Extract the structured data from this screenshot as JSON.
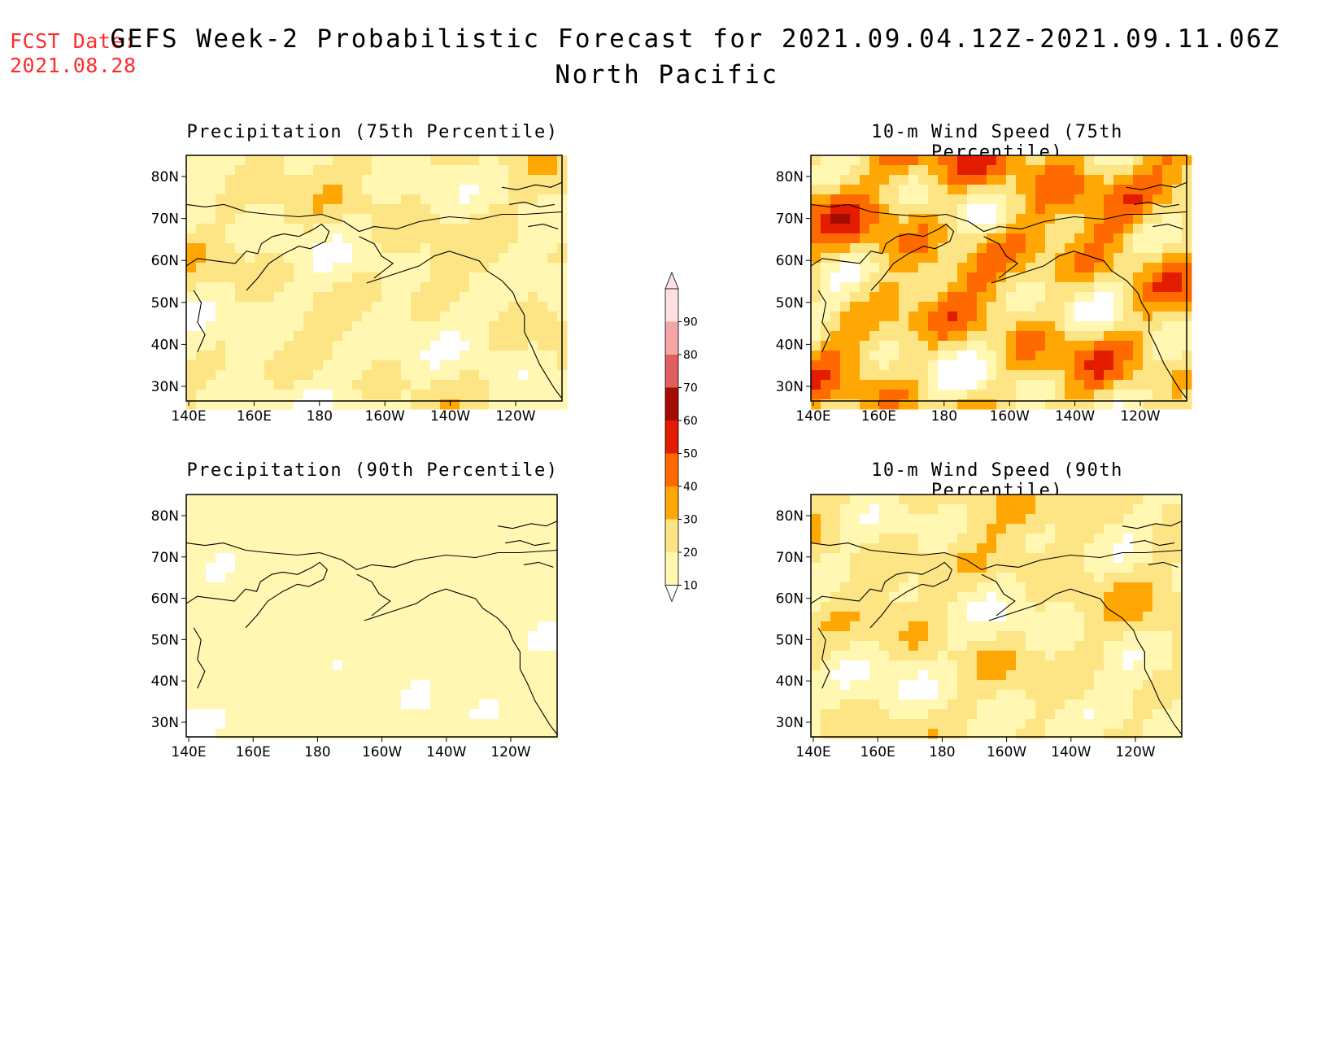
{
  "header": {
    "fcst_date": "FCST Date:\n2021.08.28",
    "title": "GEFS Week-2 Probabilistic Forecast for 2021.09.04.12Z-2021.09.11.06Z",
    "region": "North Pacific"
  },
  "axes": {
    "x_ticks": [
      "140E",
      "160E",
      "180",
      "160W",
      "140W",
      "120W"
    ],
    "y_ticks": [
      "80N",
      "70N",
      "60N",
      "50N",
      "40N",
      "30N"
    ]
  },
  "colorbar": {
    "levels": [
      "10",
      "20",
      "30",
      "40",
      "50",
      "60",
      "70",
      "80",
      "90"
    ],
    "colors": [
      "#fff7b2",
      "#fde585",
      "#ffa705",
      "#ff6a00",
      "#e31c00",
      "#a50c00",
      "#e06060",
      "#f5a6a6",
      "#fde0e4"
    ]
  },
  "panels": [
    {
      "title": "Precipitation (75th Percentile)",
      "intensity": 1.0
    },
    {
      "title": "10-m Wind Speed (75th Percentile)",
      "intensity": 2.2
    },
    {
      "title": "Precipitation (90th Percentile)",
      "intensity": 0.45
    },
    {
      "title": "10-m Wind Speed (90th Percentile)",
      "intensity": 1.25
    }
  ]
}
